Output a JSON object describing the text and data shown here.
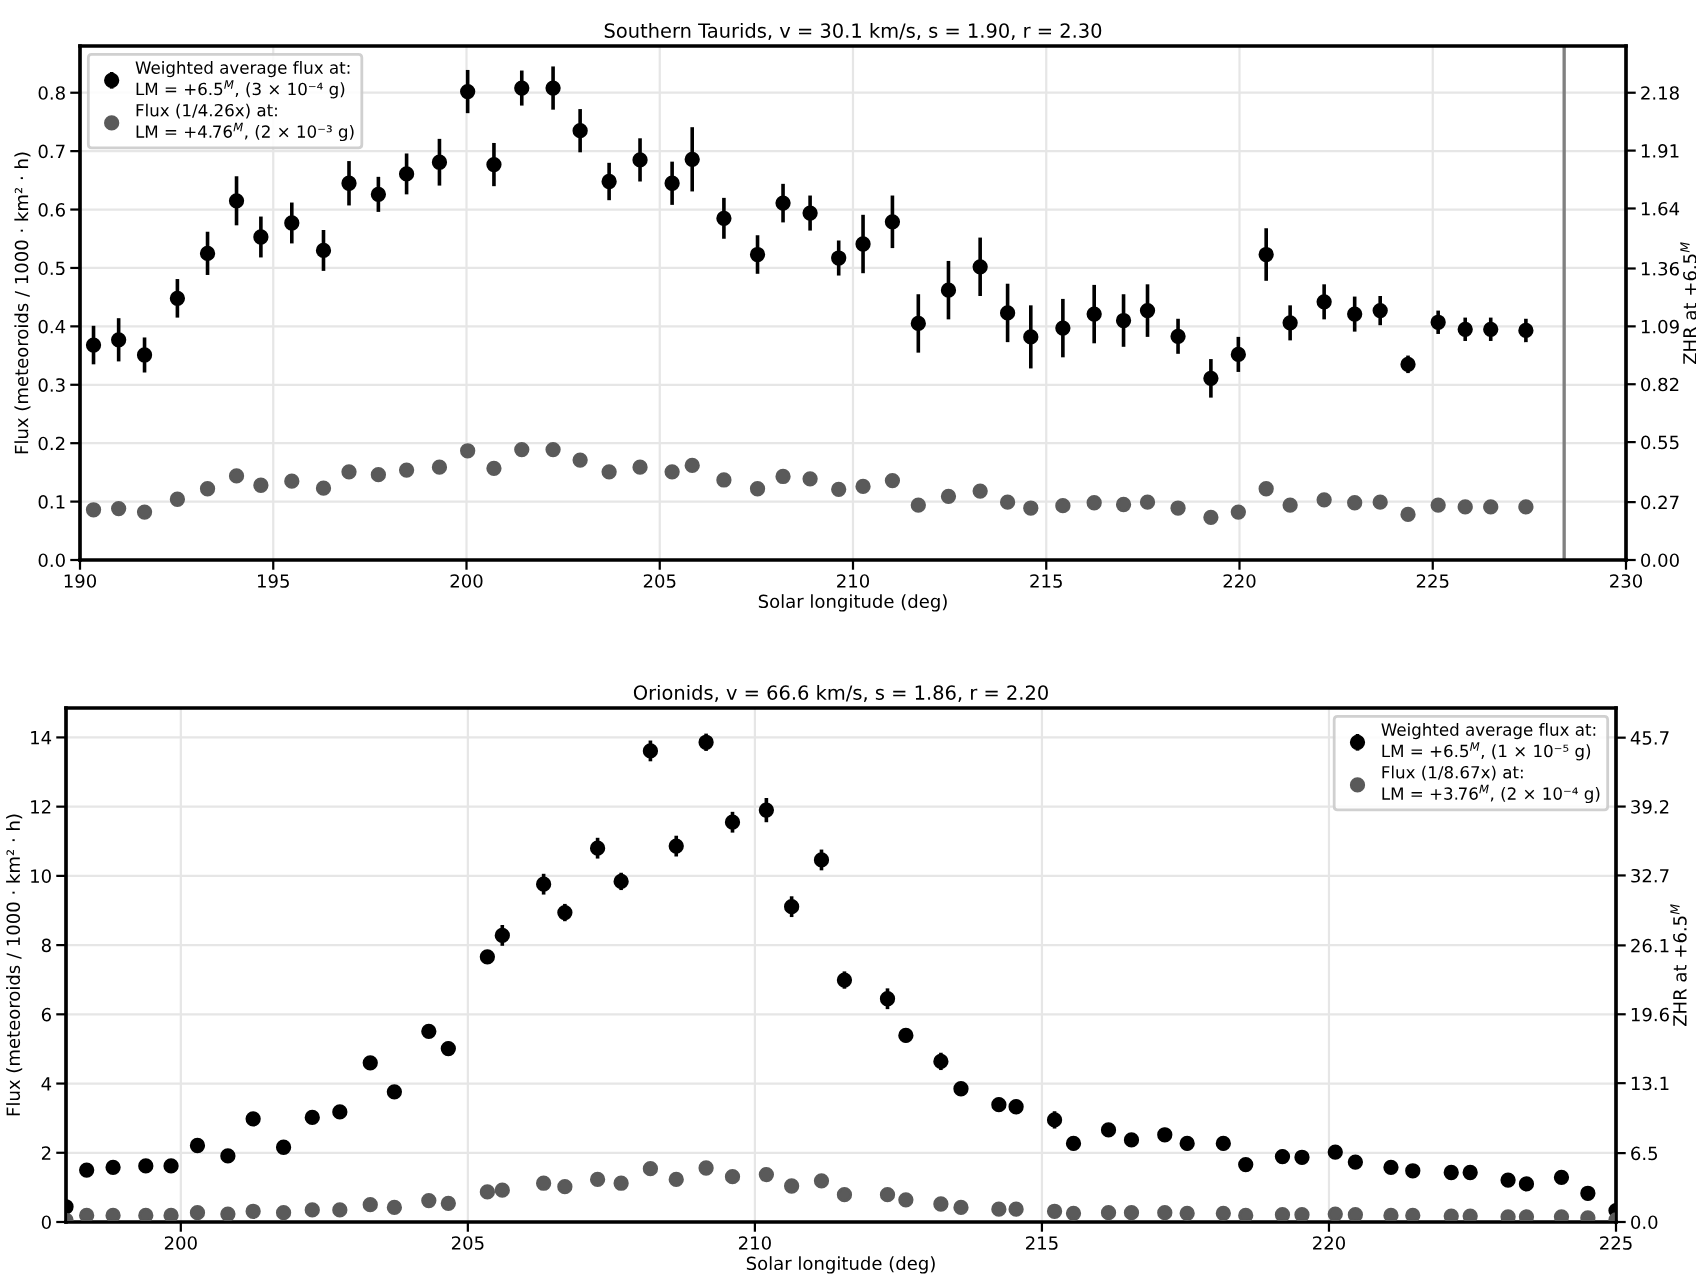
{
  "chart_data": [
    {
      "type": "scatter",
      "title": "Southern Taurids, v = 30.1 km/s, s = 1.90, r = 2.30",
      "xlabel": "Solar longitude (deg)",
      "ylabel": "Flux (meteoroids / 1000 · km² · h)",
      "y2label": "ZHR at +6.5$^{M}$",
      "xlim": [
        190,
        230
      ],
      "xticks": [
        190,
        195,
        200,
        205,
        210,
        215,
        220,
        225,
        230
      ],
      "ylim": [
        0,
        0.88
      ],
      "yticks": [
        {
          "value": 0,
          "label": "0.0"
        },
        0.1,
        0.2,
        0.3,
        0.4,
        0.5,
        0.6,
        0.7,
        0.8
      ],
      "y2lim": [
        0,
        2.398
      ],
      "y2ticks": [
        {
          "value": 0,
          "label": "0.00"
        },
        0.27,
        0.55,
        0.82,
        1.09,
        1.36,
        1.64,
        1.91,
        2.18
      ],
      "grid": true,
      "legend": "top left",
      "marker": "circle",
      "ref_lines": [
        {
          "axis": "x",
          "value": 228.4,
          "color": "#808080"
        }
      ],
      "series": [
        {
          "name": "Weighted average flux at:\nLM = +6.5$^{M}$, (3 × 10⁻⁴ g)",
          "color": "#000000",
          "x": [
            190.35,
            191.0,
            191.67,
            192.52,
            193.3,
            194.05,
            194.68,
            195.48,
            196.3,
            196.96,
            197.72,
            198.45,
            199.3,
            200.03,
            200.71,
            201.43,
            202.24,
            202.94,
            203.69,
            204.49,
            205.32,
            205.84,
            206.66,
            207.53,
            208.19,
            208.89,
            209.63,
            210.26,
            211.02,
            211.69,
            212.47,
            213.29,
            214.0,
            214.6,
            215.43,
            216.24,
            217.0,
            217.62,
            218.41,
            219.26,
            219.97,
            220.69,
            221.31,
            222.19,
            222.98,
            223.64,
            224.36,
            225.14,
            225.84,
            226.5,
            227.41
          ],
          "values": [
            0.368,
            0.377,
            0.351,
            0.448,
            0.525,
            0.615,
            0.553,
            0.577,
            0.53,
            0.645,
            0.626,
            0.661,
            0.681,
            0.802,
            0.677,
            0.808,
            0.808,
            0.735,
            0.648,
            0.685,
            0.645,
            0.686,
            0.585,
            0.523,
            0.611,
            0.594,
            0.517,
            0.541,
            0.579,
            0.405,
            0.462,
            0.502,
            0.423,
            0.382,
            0.397,
            0.421,
            0.41,
            0.427,
            0.383,
            0.311,
            0.352,
            0.523,
            0.406,
            0.442,
            0.421,
            0.427,
            0.335,
            0.407,
            0.395,
            0.395,
            0.393
          ],
          "errors": [
            0.033,
            0.037,
            0.03,
            0.033,
            0.037,
            0.042,
            0.035,
            0.035,
            0.035,
            0.038,
            0.03,
            0.035,
            0.04,
            0.037,
            0.037,
            0.03,
            0.037,
            0.037,
            0.032,
            0.037,
            0.037,
            0.055,
            0.035,
            0.033,
            0.033,
            0.03,
            0.03,
            0.05,
            0.045,
            0.05,
            0.05,
            0.05,
            0.05,
            0.054,
            0.05,
            0.05,
            0.045,
            0.045,
            0.03,
            0.033,
            0.03,
            0.045,
            0.03,
            0.03,
            0.03,
            0.025,
            0.015,
            0.02,
            0.02,
            0.02,
            0.02
          ]
        },
        {
          "name": "Flux (1/4.26x) at:\nLM = +4.76$^{M}$, (2 × 10⁻³ g)",
          "color": "#5a5a5a",
          "x": [
            190.35,
            191.0,
            191.67,
            192.52,
            193.3,
            194.05,
            194.68,
            195.48,
            196.3,
            196.96,
            197.72,
            198.45,
            199.3,
            200.03,
            200.71,
            201.43,
            202.24,
            202.94,
            203.69,
            204.49,
            205.32,
            205.84,
            206.66,
            207.53,
            208.19,
            208.89,
            209.63,
            210.26,
            211.02,
            211.69,
            212.47,
            213.29,
            214.0,
            214.6,
            215.43,
            216.24,
            217.0,
            217.62,
            218.41,
            219.26,
            219.97,
            220.69,
            221.31,
            222.19,
            222.98,
            223.64,
            224.36,
            225.14,
            225.84,
            226.5,
            227.41
          ],
          "values": [
            0.086,
            0.088,
            0.082,
            0.104,
            0.122,
            0.144,
            0.128,
            0.135,
            0.123,
            0.151,
            0.146,
            0.154,
            0.159,
            0.187,
            0.157,
            0.189,
            0.189,
            0.171,
            0.151,
            0.159,
            0.151,
            0.162,
            0.137,
            0.122,
            0.143,
            0.139,
            0.121,
            0.126,
            0.136,
            0.094,
            0.109,
            0.118,
            0.099,
            0.089,
            0.093,
            0.098,
            0.095,
            0.099,
            0.089,
            0.073,
            0.082,
            0.122,
            0.094,
            0.103,
            0.098,
            0.099,
            0.078,
            0.094,
            0.091,
            0.091,
            0.091
          ]
        }
      ]
    },
    {
      "type": "scatter",
      "title": "Orionids, v = 66.6 km/s, s = 1.86, r = 2.20",
      "xlabel": "Solar longitude (deg)",
      "ylabel": "Flux (meteoroids / 1000 · km² · h)",
      "y2label": "ZHR at +6.5$^{M}$",
      "xlim": [
        198,
        225
      ],
      "xticks": [
        200,
        205,
        210,
        215,
        220,
        225
      ],
      "ylim": [
        0,
        14.85
      ],
      "yticks": [
        0,
        2,
        4,
        6,
        8,
        10,
        12,
        14
      ],
      "y2lim": [
        0,
        48.5
      ],
      "y2ticks": [
        {
          "value": 0,
          "label": "0.0"
        },
        6.5,
        13.1,
        19.6,
        26.1,
        32.7,
        39.2,
        45.7
      ],
      "grid": true,
      "legend": "top right",
      "marker": "circle",
      "series": [
        {
          "name": "Weighted average flux at:\nLM = +6.5$^{M}$, (1 × 10⁻⁵ g)",
          "color": "#000000",
          "x": [
            198.0,
            198.36,
            198.82,
            199.39,
            199.83,
            200.29,
            200.82,
            201.26,
            201.79,
            202.29,
            202.77,
            203.3,
            203.72,
            204.32,
            204.66,
            205.34,
            205.6,
            206.32,
            206.69,
            207.26,
            207.67,
            208.18,
            208.63,
            209.15,
            209.61,
            210.2,
            210.64,
            211.16,
            211.56,
            212.31,
            212.63,
            213.24,
            213.59,
            214.25,
            214.55,
            215.22,
            215.55,
            216.16,
            216.56,
            217.14,
            217.53,
            218.16,
            218.55,
            219.19,
            219.53,
            220.11,
            220.46,
            221.08,
            221.46,
            222.13,
            222.46,
            223.12,
            223.44,
            224.05,
            224.51,
            225.0
          ],
          "values": [
            0.44,
            1.5,
            1.58,
            1.62,
            1.62,
            2.21,
            1.91,
            2.98,
            2.16,
            3.02,
            3.18,
            4.6,
            3.76,
            5.51,
            5.01,
            7.66,
            8.28,
            9.76,
            8.94,
            10.8,
            9.84,
            13.61,
            10.86,
            13.86,
            11.55,
            11.9,
            9.11,
            10.46,
            6.99,
            6.45,
            5.39,
            4.64,
            3.85,
            3.39,
            3.33,
            2.95,
            2.27,
            2.66,
            2.37,
            2.52,
            2.27,
            2.27,
            1.66,
            1.89,
            1.87,
            2.02,
            1.73,
            1.58,
            1.48,
            1.43,
            1.43,
            1.21,
            1.1,
            1.29,
            0.83,
            0.33
          ],
          "errors": [
            0.2,
            0.15,
            0.15,
            0.15,
            0.15,
            0.15,
            0.15,
            0.15,
            0.15,
            0.15,
            0.15,
            0.15,
            0.15,
            0.15,
            0.2,
            0.2,
            0.3,
            0.3,
            0.25,
            0.3,
            0.25,
            0.3,
            0.3,
            0.25,
            0.3,
            0.35,
            0.3,
            0.3,
            0.25,
            0.3,
            0.2,
            0.25,
            0.15,
            0.2,
            0.2,
            0.25,
            0.2,
            0.2,
            0.2,
            0.2,
            0.2,
            0.2,
            0.15,
            0.2,
            0.2,
            0.2,
            0.2,
            0.15,
            0.15,
            0.15,
            0.15,
            0.15,
            0.15,
            0.15,
            0.2,
            0.2
          ]
        },
        {
          "name": "Flux (1/8.67x) at:\nLM = +3.76$^{M}$, (2 × 10⁻⁴ g)",
          "color": "#5a5a5a",
          "x": [
            198.0,
            198.36,
            198.82,
            199.39,
            199.83,
            200.29,
            200.82,
            201.26,
            201.79,
            202.29,
            202.77,
            203.3,
            203.72,
            204.32,
            204.66,
            205.34,
            205.6,
            206.32,
            206.69,
            207.26,
            207.67,
            208.18,
            208.63,
            209.15,
            209.61,
            210.2,
            210.64,
            211.16,
            211.56,
            212.31,
            212.63,
            213.24,
            213.59,
            214.25,
            214.55,
            215.22,
            215.55,
            216.16,
            216.56,
            217.14,
            217.53,
            218.16,
            218.55,
            219.19,
            219.53,
            220.11,
            220.46,
            221.08,
            221.46,
            222.13,
            222.46,
            223.12,
            223.44,
            224.05,
            224.51,
            225.0
          ],
          "values": [
            0.05,
            0.19,
            0.19,
            0.19,
            0.19,
            0.27,
            0.23,
            0.31,
            0.27,
            0.35,
            0.35,
            0.5,
            0.42,
            0.62,
            0.54,
            0.87,
            0.92,
            1.12,
            1.02,
            1.23,
            1.12,
            1.54,
            1.23,
            1.56,
            1.31,
            1.37,
            1.04,
            1.19,
            0.79,
            0.79,
            0.64,
            0.52,
            0.42,
            0.37,
            0.37,
            0.31,
            0.25,
            0.27,
            0.27,
            0.27,
            0.25,
            0.25,
            0.19,
            0.21,
            0.21,
            0.23,
            0.21,
            0.19,
            0.19,
            0.17,
            0.17,
            0.15,
            0.15,
            0.15,
            0.12,
            0.06
          ]
        }
      ]
    }
  ]
}
